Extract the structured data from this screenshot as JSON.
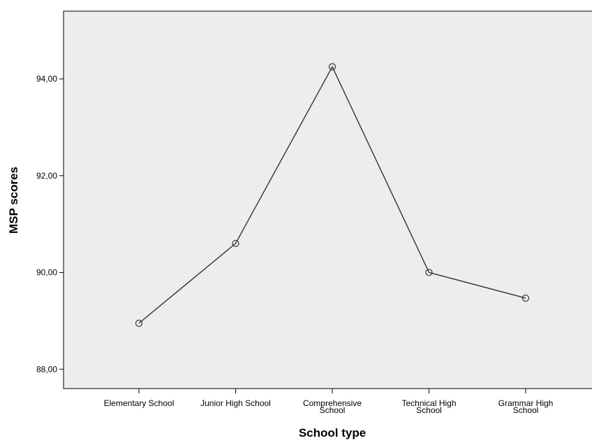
{
  "chart_data": {
    "type": "line",
    "xlabel": "School type",
    "ylabel": "MSP scores",
    "categories": [
      [
        "Elementary School"
      ],
      [
        "Junior High School"
      ],
      [
        "Comprehensive",
        "School"
      ],
      [
        "Technical High",
        "School"
      ],
      [
        "Grammar High",
        "School"
      ]
    ],
    "values": [
      88.95,
      90.6,
      94.25,
      90.0,
      89.47
    ],
    "ylim": [
      87.6,
      95.4
    ],
    "yticks": [
      88,
      90,
      92,
      94
    ],
    "ytick_labels": [
      "88,00",
      "90,00",
      "92,00",
      "94,00"
    ],
    "grid": false,
    "marker": "open-circle",
    "colors": {
      "plot_background": "#ededed",
      "line": "#333333",
      "axis": "#000000"
    }
  }
}
